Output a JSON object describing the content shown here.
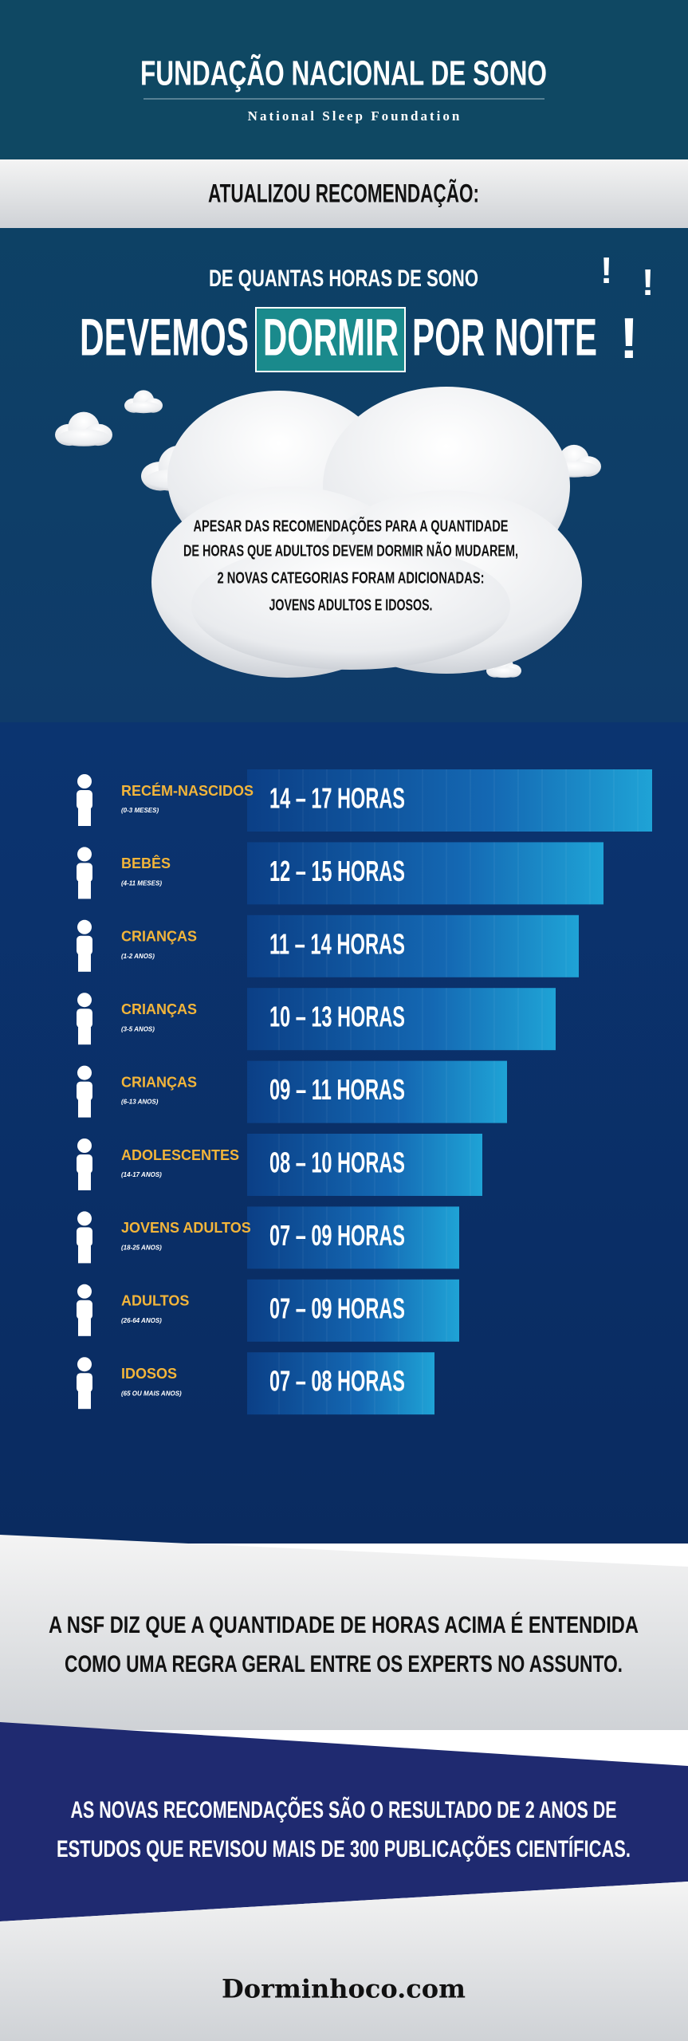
{
  "header": {
    "title": "FUNDAÇÃO NACIONAL DE SONO",
    "subtitle": "National Sleep Foundation"
  },
  "banner": "ATUALIZOU RECOMENDAÇÃO:",
  "headline": {
    "line1": "DE QUANTAS HORAS DE SONO",
    "before": "DEVEMOS",
    "highlight": "DORMIR",
    "after": "POR NOITE",
    "marks": [
      "!",
      "!",
      "!"
    ]
  },
  "intro": [
    "APESAR DAS RECOMENDAÇÕES PARA A QUANTIDADE",
    "DE HORAS QUE ADULTOS DEVEM DORMIR NÃO MUDAREM,",
    "2 NOVAS CATEGORIAS FORAM ADICIONADAS:",
    "JOVENS ADULTOS E IDOSOS."
  ],
  "rows": [
    {
      "group": "RECÉM-NASCIDOS",
      "age": "(0-3 MESES)",
      "hours": "14 – 17 HORAS"
    },
    {
      "group": "BEBÊS",
      "age": "(4-11 MESES)",
      "hours": "12 – 15 HORAS"
    },
    {
      "group": "CRIANÇAS",
      "age": "(1-2 ANOS)",
      "hours": "11 – 14 HORAS"
    },
    {
      "group": "CRIANÇAS",
      "age": "(3-5 ANOS)",
      "hours": "10 – 13 HORAS"
    },
    {
      "group": "CRIANÇAS",
      "age": "(6-13 ANOS)",
      "hours": "09 – 11 HORAS"
    },
    {
      "group": "ADOLESCENTES",
      "age": "(14-17 ANOS)",
      "hours": "08 – 10 HORAS"
    },
    {
      "group": "JOVENS ADULTOS",
      "age": "(18-25 ANOS)",
      "hours": "07 – 09 HORAS"
    },
    {
      "group": "ADULTOS",
      "age": "(26-64 ANOS)",
      "hours": "07 – 09 HORAS"
    },
    {
      "group": "IDOSOS",
      "age": "(65 OU MAIS ANOS)",
      "hours": "07 – 08 HORAS"
    }
  ],
  "note": [
    "A NSF DIZ QUE A QUANTIDADE DE HORAS ACIMA É ENTENDIDA",
    "COMO UMA REGRA GERAL ENTRE OS EXPERTS NO ASSUNTO."
  ],
  "conclusion": [
    "AS NOVAS RECOMENDAÇÕES SÃO O RESULTADO DE 2 ANOS DE",
    "ESTUDOS QUE REVISOU MAIS DE 300 PUBLICAÇÕES CIENTÍFICAS."
  ],
  "footer": "Dorminhoco.com"
}
